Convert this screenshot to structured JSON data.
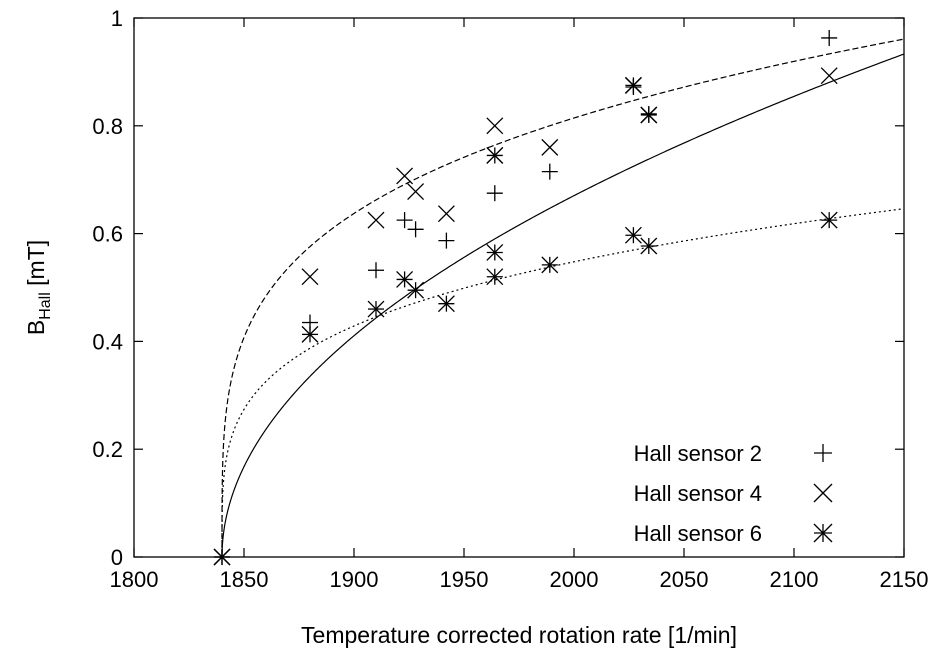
{
  "chart_data": {
    "type": "scatter",
    "title": "",
    "xlabel": "Temperature corrected rotation rate [1/min]",
    "ylabel_main": "B",
    "ylabel_sub": "Hall",
    "ylabel_unit": " [mT]",
    "xlim": [
      1800,
      2150
    ],
    "ylim": [
      0,
      1
    ],
    "xticks": [
      1800,
      1850,
      1900,
      1950,
      2000,
      2050,
      2100,
      2150
    ],
    "yticks": [
      0,
      0.2,
      0.4,
      0.6,
      0.8,
      1
    ],
    "ytick_labels": [
      "0",
      "0.2",
      "0.4",
      "0.6",
      "0.8",
      "1"
    ],
    "grid": false,
    "legend_position": "bottom-right",
    "series": [
      {
        "name": "Hall sensor 2",
        "marker": "plus",
        "points": [
          [
            1840,
            0
          ],
          [
            1880,
            0.435
          ],
          [
            1910,
            0.532
          ],
          [
            1923,
            0.625
          ],
          [
            1928,
            0.608
          ],
          [
            1942,
            0.587
          ],
          [
            1964,
            0.675
          ],
          [
            1989,
            0.715
          ],
          [
            2027,
            0.872
          ],
          [
            2034,
            0.822
          ],
          [
            2116,
            0.963
          ]
        ]
      },
      {
        "name": "Hall sensor 4",
        "marker": "cross",
        "points": [
          [
            1840,
            0
          ],
          [
            1880,
            0.52
          ],
          [
            1910,
            0.625
          ],
          [
            1923,
            0.707
          ],
          [
            1928,
            0.678
          ],
          [
            1942,
            0.637
          ],
          [
            1964,
            0.8
          ],
          [
            1964,
            0.745
          ],
          [
            1989,
            0.76
          ],
          [
            2027,
            0.875
          ],
          [
            2034,
            0.82
          ],
          [
            2116,
            0.893
          ]
        ]
      },
      {
        "name": "Hall sensor 6",
        "marker": "star",
        "points": [
          [
            1840,
            0
          ],
          [
            1880,
            0.413
          ],
          [
            1910,
            0.46
          ],
          [
            1923,
            0.515
          ],
          [
            1928,
            0.495
          ],
          [
            1942,
            0.47
          ],
          [
            1964,
            0.52
          ],
          [
            1964,
            0.565
          ],
          [
            1989,
            0.542
          ],
          [
            2027,
            0.597
          ],
          [
            2034,
            0.577
          ],
          [
            2116,
            0.625
          ],
          [
            1964,
            0.745
          ],
          [
            2027,
            0.875
          ],
          [
            2034,
            0.82
          ]
        ]
      }
    ],
    "fits": [
      {
        "style": "solid",
        "x0": 1840,
        "a": 0.053,
        "p": 0.5
      },
      {
        "style": "dashed",
        "x0": 1840,
        "a": 0.229,
        "p": 0.25
      },
      {
        "style": "dotted",
        "x0": 1840,
        "a": 0.154,
        "p": 0.25
      }
    ]
  }
}
